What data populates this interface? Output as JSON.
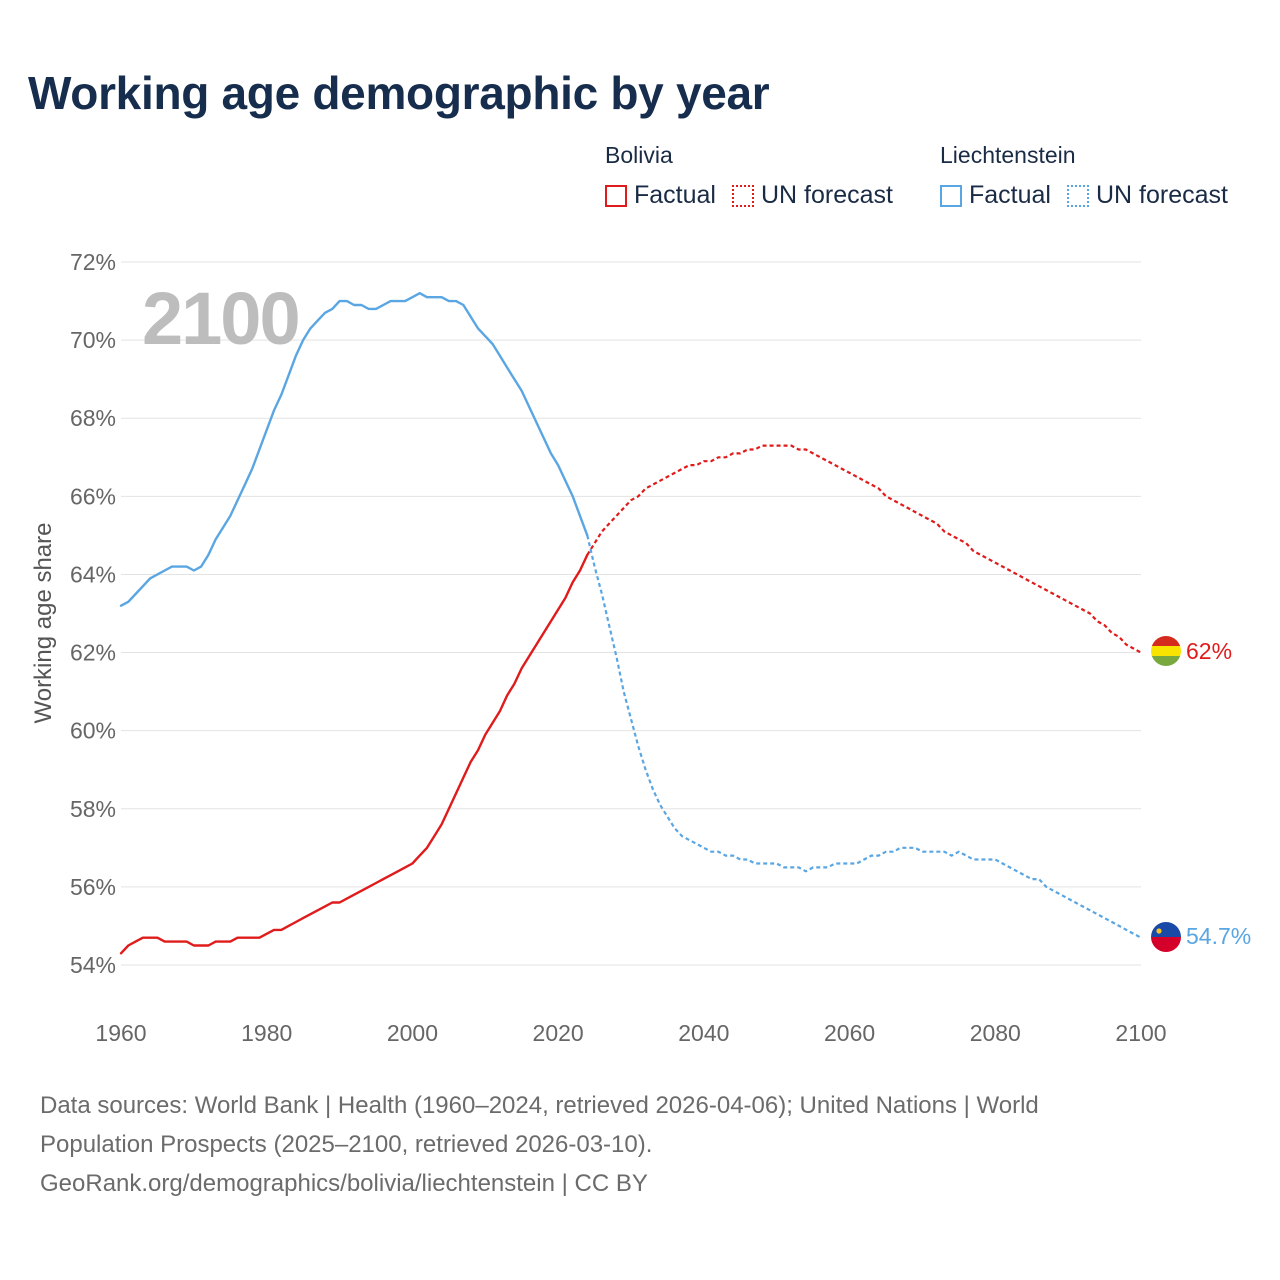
{
  "title": "Working age demographic by year",
  "legend": {
    "groups": [
      {
        "country": "Bolivia",
        "color": "#e01b1b",
        "factual_label": "Factual",
        "forecast_label": "UN forecast"
      },
      {
        "country": "Liechtenstein",
        "color": "#5aa6e3",
        "factual_label": "Factual",
        "forecast_label": "UN forecast"
      }
    ]
  },
  "year_watermark": "2100",
  "sources": {
    "line1": "Data sources: World Bank | Health (1960–2024, retrieved 2026-04-06); United Nations | World",
    "line2": "Population Prospects (2025–2100, retrieved 2026-03-10).",
    "line3": "GeoRank.org/demographics/bolivia/liechtenstein | CC BY"
  },
  "chart_data": {
    "type": "line",
    "title": "Working age demographic by year",
    "xlabel": "",
    "ylabel": "Working age share",
    "xlim": [
      1960,
      2100
    ],
    "ylim": [
      54,
      72
    ],
    "x_ticks": [
      1960,
      1980,
      2000,
      2020,
      2040,
      2060,
      2080,
      2100
    ],
    "x_tick_labels": [
      "1960",
      "1980",
      "2000",
      "2020",
      "2040",
      "2060",
      "2080",
      "2100"
    ],
    "y_ticks": [
      54,
      56,
      58,
      60,
      62,
      64,
      66,
      68,
      70,
      72
    ],
    "y_tick_labels": [
      "54%",
      "56%",
      "58%",
      "60%",
      "62%",
      "64%",
      "66%",
      "68%",
      "70%",
      "72%"
    ],
    "grid": true,
    "series": [
      {
        "name": "Bolivia",
        "color": "#e01b1b",
        "end_label": "62%",
        "factual": {
          "x": [
            1960,
            1961,
            1962,
            1963,
            1964,
            1965,
            1966,
            1967,
            1968,
            1969,
            1970,
            1971,
            1972,
            1973,
            1974,
            1975,
            1976,
            1977,
            1978,
            1979,
            1980,
            1981,
            1982,
            1983,
            1984,
            1985,
            1986,
            1987,
            1988,
            1989,
            1990,
            1991,
            1992,
            1993,
            1994,
            1995,
            1996,
            1997,
            1998,
            1999,
            2000,
            2001,
            2002,
            2003,
            2004,
            2005,
            2006,
            2007,
            2008,
            2009,
            2010,
            2011,
            2012,
            2013,
            2014,
            2015,
            2016,
            2017,
            2018,
            2019,
            2020,
            2021,
            2022,
            2023,
            2024
          ],
          "y": [
            54.3,
            54.5,
            54.6,
            54.7,
            54.7,
            54.7,
            54.6,
            54.6,
            54.6,
            54.6,
            54.5,
            54.5,
            54.5,
            54.6,
            54.6,
            54.6,
            54.7,
            54.7,
            54.7,
            54.7,
            54.8,
            54.9,
            54.9,
            55.0,
            55.1,
            55.2,
            55.3,
            55.4,
            55.5,
            55.6,
            55.6,
            55.7,
            55.8,
            55.9,
            56.0,
            56.1,
            56.2,
            56.3,
            56.4,
            56.5,
            56.6,
            56.8,
            57.0,
            57.3,
            57.6,
            58.0,
            58.4,
            58.8,
            59.2,
            59.5,
            59.9,
            60.2,
            60.5,
            60.9,
            61.2,
            61.6,
            61.9,
            62.2,
            62.5,
            62.8,
            63.1,
            63.4,
            63.8,
            64.1,
            64.5
          ]
        },
        "forecast": {
          "x": [
            2024,
            2025,
            2026,
            2027,
            2028,
            2029,
            2030,
            2031,
            2032,
            2033,
            2034,
            2035,
            2036,
            2037,
            2038,
            2039,
            2040,
            2041,
            2042,
            2043,
            2044,
            2045,
            2046,
            2047,
            2048,
            2049,
            2050,
            2051,
            2052,
            2053,
            2054,
            2055,
            2056,
            2057,
            2058,
            2059,
            2060,
            2061,
            2062,
            2063,
            2064,
            2065,
            2066,
            2067,
            2068,
            2069,
            2070,
            2071,
            2072,
            2073,
            2074,
            2075,
            2076,
            2077,
            2078,
            2079,
            2080,
            2081,
            2082,
            2083,
            2084,
            2085,
            2086,
            2087,
            2088,
            2089,
            2090,
            2091,
            2092,
            2093,
            2094,
            2095,
            2096,
            2097,
            2098,
            2099,
            2100
          ],
          "y": [
            64.5,
            64.8,
            65.1,
            65.3,
            65.5,
            65.7,
            65.9,
            66.0,
            66.2,
            66.3,
            66.4,
            66.5,
            66.6,
            66.7,
            66.8,
            66.8,
            66.9,
            66.9,
            67.0,
            67.0,
            67.1,
            67.1,
            67.2,
            67.2,
            67.3,
            67.3,
            67.3,
            67.3,
            67.3,
            67.2,
            67.2,
            67.1,
            67.0,
            66.9,
            66.8,
            66.7,
            66.6,
            66.5,
            66.4,
            66.3,
            66.2,
            66.0,
            65.9,
            65.8,
            65.7,
            65.6,
            65.5,
            65.4,
            65.3,
            65.1,
            65.0,
            64.9,
            64.8,
            64.6,
            64.5,
            64.4,
            64.3,
            64.2,
            64.1,
            64.0,
            63.9,
            63.8,
            63.7,
            63.6,
            63.5,
            63.4,
            63.3,
            63.2,
            63.1,
            63.0,
            62.8,
            62.7,
            62.5,
            62.4,
            62.2,
            62.1,
            62.0
          ]
        }
      },
      {
        "name": "Liechtenstein",
        "color": "#5aa6e3",
        "end_label": "54.7%",
        "factual": {
          "x": [
            1960,
            1961,
            1962,
            1963,
            1964,
            1965,
            1966,
            1967,
            1968,
            1969,
            1970,
            1971,
            1972,
            1973,
            1974,
            1975,
            1976,
            1977,
            1978,
            1979,
            1980,
            1981,
            1982,
            1983,
            1984,
            1985,
            1986,
            1987,
            1988,
            1989,
            1990,
            1991,
            1992,
            1993,
            1994,
            1995,
            1996,
            1997,
            1998,
            1999,
            2000,
            2001,
            2002,
            2003,
            2004,
            2005,
            2006,
            2007,
            2008,
            2009,
            2010,
            2011,
            2012,
            2013,
            2014,
            2015,
            2016,
            2017,
            2018,
            2019,
            2020,
            2021,
            2022,
            2023,
            2024
          ],
          "y": [
            63.2,
            63.3,
            63.5,
            63.7,
            63.9,
            64.0,
            64.1,
            64.2,
            64.2,
            64.2,
            64.1,
            64.2,
            64.5,
            64.9,
            65.2,
            65.5,
            65.9,
            66.3,
            66.7,
            67.2,
            67.7,
            68.2,
            68.6,
            69.1,
            69.6,
            70.0,
            70.3,
            70.5,
            70.7,
            70.8,
            71.0,
            71.0,
            70.9,
            70.9,
            70.8,
            70.8,
            70.9,
            71.0,
            71.0,
            71.0,
            71.1,
            71.2,
            71.1,
            71.1,
            71.1,
            71.0,
            71.0,
            70.9,
            70.6,
            70.3,
            70.1,
            69.9,
            69.6,
            69.3,
            69.0,
            68.7,
            68.3,
            67.9,
            67.5,
            67.1,
            66.8,
            66.4,
            66.0,
            65.5,
            65.0
          ]
        },
        "forecast": {
          "x": [
            2024,
            2025,
            2026,
            2027,
            2028,
            2029,
            2030,
            2031,
            2032,
            2033,
            2034,
            2035,
            2036,
            2037,
            2038,
            2039,
            2040,
            2041,
            2042,
            2043,
            2044,
            2045,
            2046,
            2047,
            2048,
            2049,
            2050,
            2051,
            2052,
            2053,
            2054,
            2055,
            2056,
            2057,
            2058,
            2059,
            2060,
            2061,
            2062,
            2063,
            2064,
            2065,
            2066,
            2067,
            2068,
            2069,
            2070,
            2071,
            2072,
            2073,
            2074,
            2075,
            2076,
            2077,
            2078,
            2079,
            2080,
            2081,
            2082,
            2083,
            2084,
            2085,
            2086,
            2087,
            2088,
            2089,
            2090,
            2091,
            2092,
            2093,
            2094,
            2095,
            2096,
            2097,
            2098,
            2099,
            2100
          ],
          "y": [
            65.0,
            64.2,
            63.5,
            62.7,
            61.9,
            61.0,
            60.3,
            59.6,
            59.0,
            58.5,
            58.1,
            57.8,
            57.5,
            57.3,
            57.2,
            57.1,
            57.0,
            56.9,
            56.9,
            56.8,
            56.8,
            56.7,
            56.7,
            56.6,
            56.6,
            56.6,
            56.6,
            56.5,
            56.5,
            56.5,
            56.4,
            56.5,
            56.5,
            56.5,
            56.6,
            56.6,
            56.6,
            56.6,
            56.7,
            56.8,
            56.8,
            56.9,
            56.9,
            57.0,
            57.0,
            57.0,
            56.9,
            56.9,
            56.9,
            56.9,
            56.8,
            56.9,
            56.8,
            56.7,
            56.7,
            56.7,
            56.7,
            56.6,
            56.5,
            56.4,
            56.3,
            56.2,
            56.2,
            56.0,
            55.9,
            55.8,
            55.7,
            55.6,
            55.5,
            55.4,
            55.3,
            55.2,
            55.1,
            55.0,
            54.9,
            54.8,
            54.7
          ]
        }
      }
    ]
  }
}
